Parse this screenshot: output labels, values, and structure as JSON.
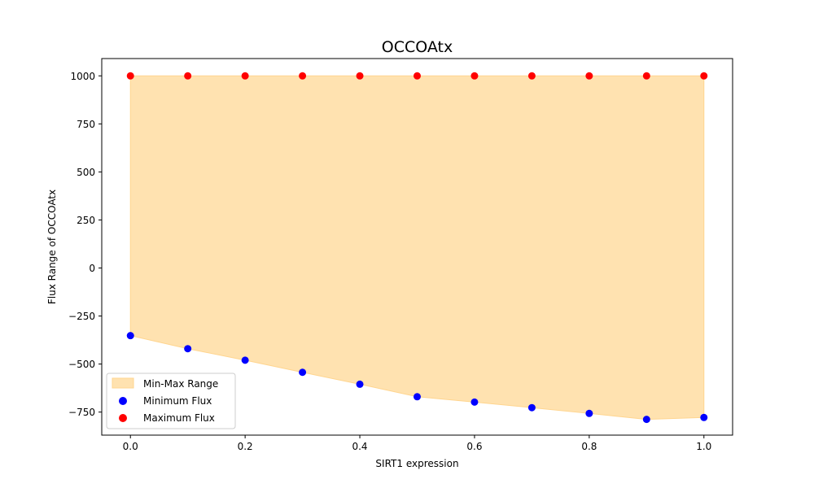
{
  "chart_data": {
    "type": "scatter",
    "title": "OCCOAtx",
    "xlabel": "SIRT1 expression",
    "ylabel": "Flux Range of OCCOAtx",
    "xlim": [
      -0.05,
      1.05
    ],
    "ylim": [
      -870,
      1090
    ],
    "xticks": [
      0.0,
      0.2,
      0.4,
      0.6,
      0.8,
      1.0
    ],
    "xtick_labels": [
      "0.0",
      "0.2",
      "0.4",
      "0.6",
      "0.8",
      "1.0"
    ],
    "yticks": [
      -750,
      -500,
      -250,
      0,
      250,
      500,
      750,
      1000
    ],
    "ytick_labels": [
      "−750",
      "−500",
      "−250",
      "0",
      "250",
      "500",
      "750",
      "1000"
    ],
    "grid": false,
    "legend_position": "lower-left",
    "x": [
      0.0,
      0.1,
      0.2,
      0.3,
      0.4,
      0.5,
      0.6,
      0.7,
      0.8,
      0.9,
      1.0
    ],
    "fill_between": {
      "name": "Min-Max Range",
      "color": "#ffe2b0",
      "edge_color": "#ffd58f"
    },
    "series": [
      {
        "name": "Minimum Flux",
        "color": "#0000ff",
        "values": [
          -352,
          -420,
          -480,
          -543,
          -605,
          -670,
          -698,
          -727,
          -757,
          -788,
          -778
        ]
      },
      {
        "name": "Maximum Flux",
        "color": "#ff0000",
        "values": [
          1000,
          1000,
          1000,
          1000,
          1000,
          1000,
          1000,
          1000,
          1000,
          1000,
          1000
        ]
      }
    ]
  }
}
